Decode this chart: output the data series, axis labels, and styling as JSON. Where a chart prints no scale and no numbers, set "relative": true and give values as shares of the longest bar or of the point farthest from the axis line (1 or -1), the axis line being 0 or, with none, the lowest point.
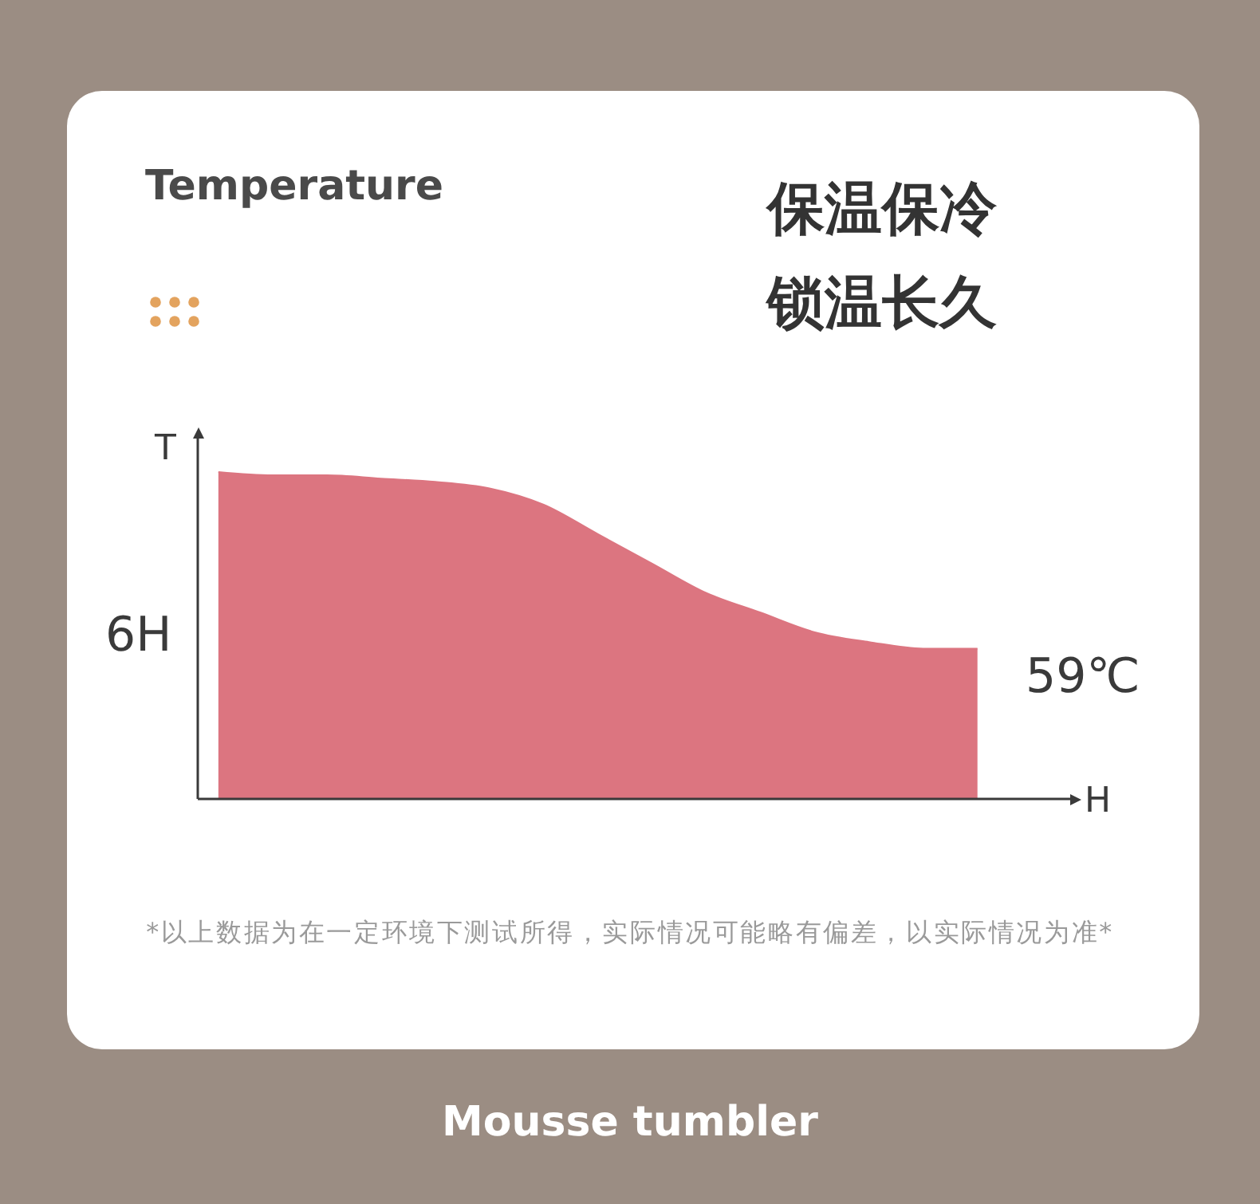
{
  "chart_data": {
    "type": "area",
    "title": "Temperature",
    "subtitle": "保温保冷锁温长久",
    "xlabel": "H",
    "ylabel": "T",
    "categories": [
      null,
      null,
      null,
      null,
      null,
      null,
      null,
      null,
      null,
      null,
      null,
      null,
      null,
      null,
      null
    ],
    "values": [
      1.0,
      0.99,
      0.99,
      0.98,
      0.97,
      0.95,
      0.9,
      0.81,
      0.72,
      0.63,
      0.57,
      0.51,
      0.48,
      0.46,
      0.46
    ],
    "color": "#dc7580",
    "relative": true,
    "annotations": [
      "6H",
      "59℃",
      "*以上数据为在一定环境下测试所得，实际情况可能略有偏差，以实际情况为准*",
      "Mousse tumbler"
    ]
  }
}
